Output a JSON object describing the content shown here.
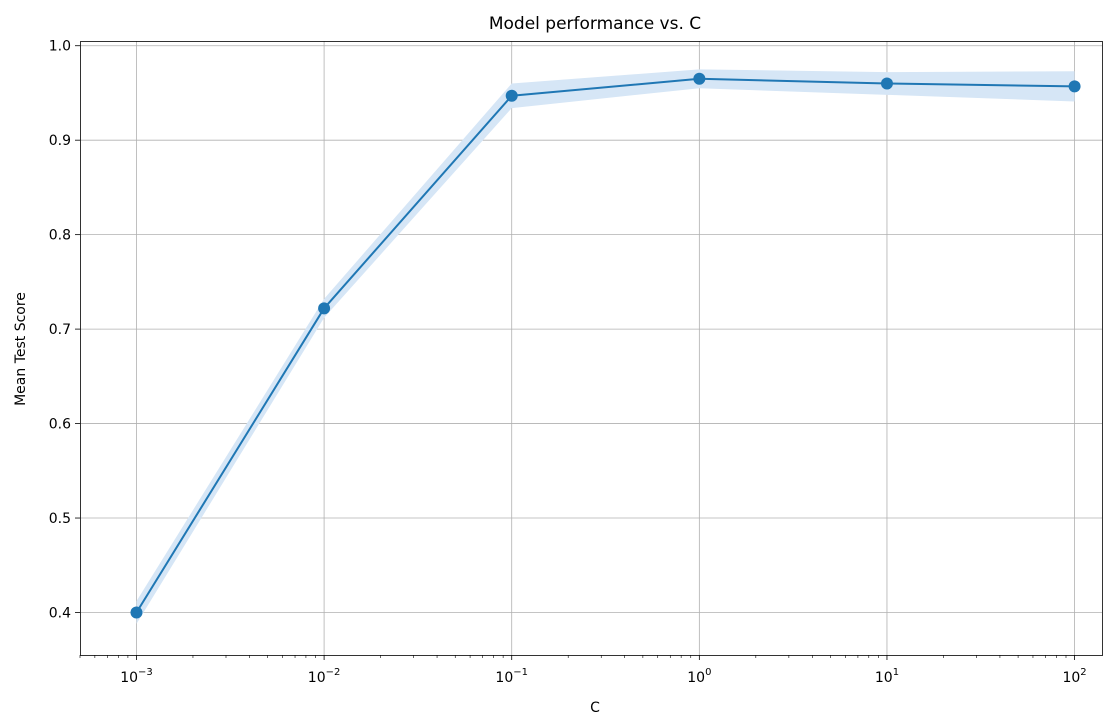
{
  "chart_data": {
    "type": "line",
    "title": "Model performance vs. C",
    "xlabel": "C",
    "ylabel": "Mean Test Score",
    "xscale": "log",
    "xlim": [
      0.0005,
      140
    ],
    "ylim": [
      0.355,
      1.005
    ],
    "grid": true,
    "x": [
      0.001,
      0.01,
      0.1,
      1,
      10,
      100
    ],
    "x_ticks": [
      {
        "value": 0.001,
        "base": "10",
        "exp": "−3"
      },
      {
        "value": 0.01,
        "base": "10",
        "exp": "−2"
      },
      {
        "value": 0.1,
        "base": "10",
        "exp": "−1"
      },
      {
        "value": 1,
        "base": "10",
        "exp": "0"
      },
      {
        "value": 10,
        "base": "10",
        "exp": "1"
      },
      {
        "value": 100,
        "base": "10",
        "exp": "2"
      }
    ],
    "y_ticks": [
      {
        "value": 0.4,
        "label": "0.4"
      },
      {
        "value": 0.5,
        "label": "0.5"
      },
      {
        "value": 0.6,
        "label": "0.6"
      },
      {
        "value": 0.7,
        "label": "0.7"
      },
      {
        "value": 0.8,
        "label": "0.8"
      },
      {
        "value": 0.9,
        "label": "0.9"
      },
      {
        "value": 1.0,
        "label": "1.0"
      }
    ],
    "series": [
      {
        "values": [
          0.4,
          0.722,
          0.947,
          0.965,
          0.96,
          0.957
        ],
        "std": [
          0.012,
          0.01,
          0.013,
          0.01,
          0.012,
          0.016
        ],
        "color": "#1f77b4",
        "band_color": "#d6e6f6",
        "marker": "circle"
      }
    ]
  }
}
